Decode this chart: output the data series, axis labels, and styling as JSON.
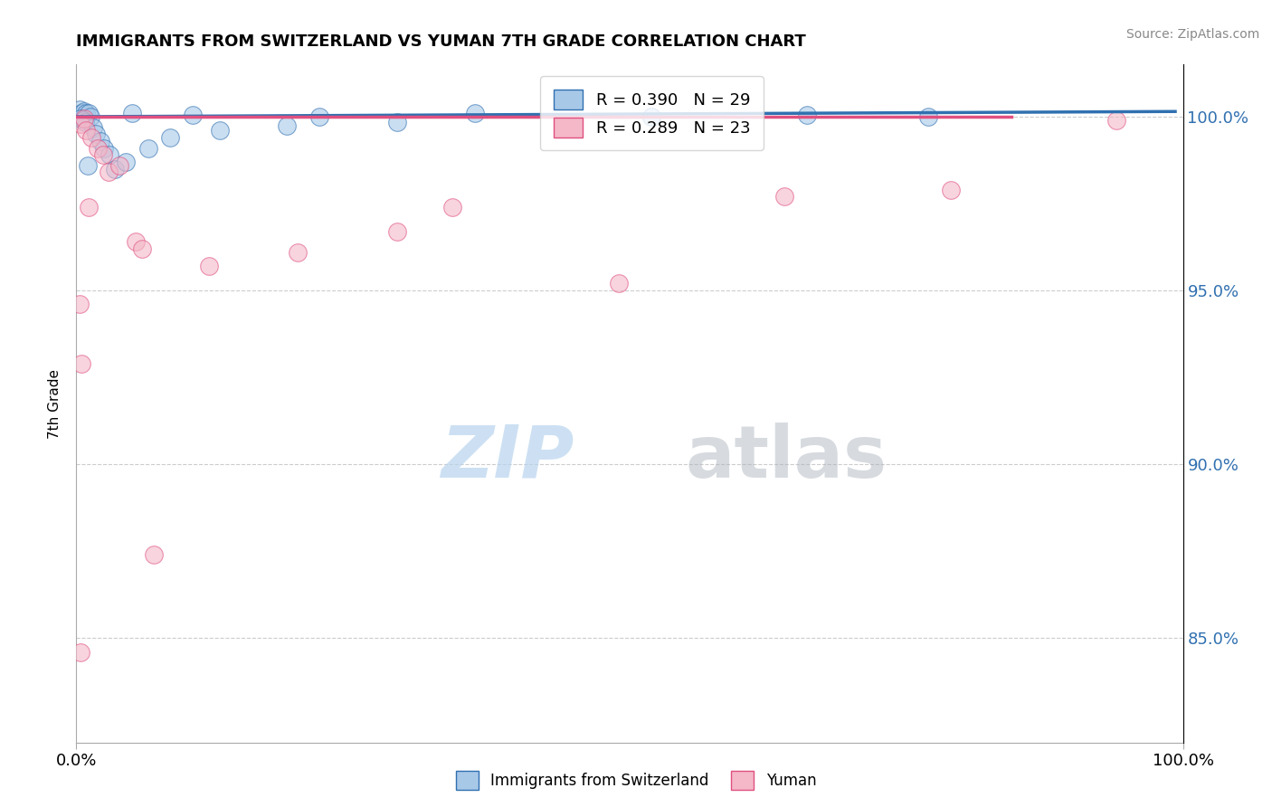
{
  "title": "IMMIGRANTS FROM SWITZERLAND VS YUMAN 7TH GRADE CORRELATION CHART",
  "source_text": "Source: ZipAtlas.com",
  "ylabel": "7th Grade",
  "x_min": 0.0,
  "x_max": 100.0,
  "y_min": 82.0,
  "y_max": 101.5,
  "y_ticks": [
    85.0,
    90.0,
    95.0,
    100.0
  ],
  "legend_r1": "R = 0.390",
  "legend_n1": "N = 29",
  "legend_r2": "R = 0.289",
  "legend_n2": "N = 23",
  "legend_label1": "Immigrants from Switzerland",
  "legend_label2": "Yuman",
  "blue_color": "#a8c8e8",
  "pink_color": "#f4b8c8",
  "blue_line_color": "#3070b0",
  "pink_line_color": "#e05080",
  "blue_scatter": [
    [
      0.3,
      100.2
    ],
    [
      0.5,
      100.1
    ],
    [
      0.7,
      100.15
    ],
    [
      0.9,
      100.1
    ],
    [
      1.1,
      100.1
    ],
    [
      1.3,
      100.0
    ],
    [
      0.4,
      99.95
    ],
    [
      0.6,
      99.9
    ],
    [
      0.8,
      99.85
    ],
    [
      1.5,
      99.7
    ],
    [
      1.8,
      99.5
    ],
    [
      2.2,
      99.3
    ],
    [
      2.5,
      99.1
    ],
    [
      3.0,
      98.9
    ],
    [
      1.0,
      98.6
    ],
    [
      5.0,
      100.1
    ],
    [
      10.5,
      100.05
    ],
    [
      22.0,
      100.0
    ],
    [
      36.0,
      100.1
    ],
    [
      52.0,
      100.0
    ],
    [
      66.0,
      100.05
    ],
    [
      77.0,
      100.0
    ],
    [
      3.5,
      98.5
    ],
    [
      4.5,
      98.7
    ],
    [
      6.5,
      99.1
    ],
    [
      8.5,
      99.4
    ],
    [
      13.0,
      99.6
    ],
    [
      19.0,
      99.75
    ],
    [
      29.0,
      99.85
    ]
  ],
  "pink_scatter": [
    [
      0.4,
      99.8
    ],
    [
      0.7,
      99.95
    ],
    [
      0.9,
      99.6
    ],
    [
      1.4,
      99.4
    ],
    [
      1.9,
      99.1
    ],
    [
      2.4,
      98.9
    ],
    [
      2.9,
      98.4
    ],
    [
      3.9,
      98.6
    ],
    [
      1.1,
      97.4
    ],
    [
      0.3,
      94.6
    ],
    [
      5.4,
      96.4
    ],
    [
      5.9,
      96.2
    ],
    [
      34.0,
      97.4
    ],
    [
      49.0,
      95.2
    ],
    [
      0.5,
      92.9
    ],
    [
      64.0,
      97.7
    ],
    [
      79.0,
      97.9
    ],
    [
      94.0,
      99.9
    ],
    [
      7.0,
      87.4
    ],
    [
      0.4,
      84.6
    ],
    [
      20.0,
      96.1
    ],
    [
      12.0,
      95.7
    ],
    [
      29.0,
      96.7
    ]
  ],
  "blue_trend": [
    0.0,
    100.0,
    99.3,
    100.15
  ],
  "pink_trend": [
    0.0,
    100.0,
    84.5,
    100.0
  ],
  "grid_color": "#cccccc",
  "background_color": "#ffffff"
}
